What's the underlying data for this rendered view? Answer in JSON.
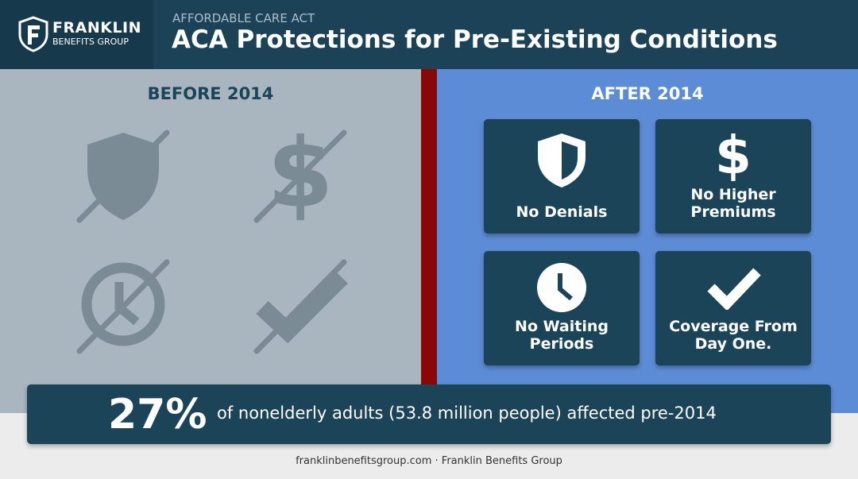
{
  "header": {
    "logo_name": "FRANKLIN",
    "logo_sub": "BENEFITS GROUP",
    "eyebrow": "AFFORDABLE CARE ACT",
    "title": "ACA Protections for Pre-Existing Conditions"
  },
  "before": {
    "heading": "BEFORE 2014"
  },
  "after": {
    "heading": "AFTER 2014",
    "cards": [
      {
        "lines": [
          "No Denials"
        ]
      },
      {
        "lines": [
          "No Higher",
          "Premiums"
        ]
      },
      {
        "lines": [
          "No Waiting",
          "Periods"
        ]
      },
      {
        "lines": [
          "Coverage From",
          "Day One."
        ]
      }
    ]
  },
  "stat": {
    "value": "27%",
    "text": "of nonelderly adults (53.8 million people) affected pre-2014"
  },
  "footer": {
    "text": "franklinbenefitsgroup.com · Franklin Benefits Group"
  }
}
